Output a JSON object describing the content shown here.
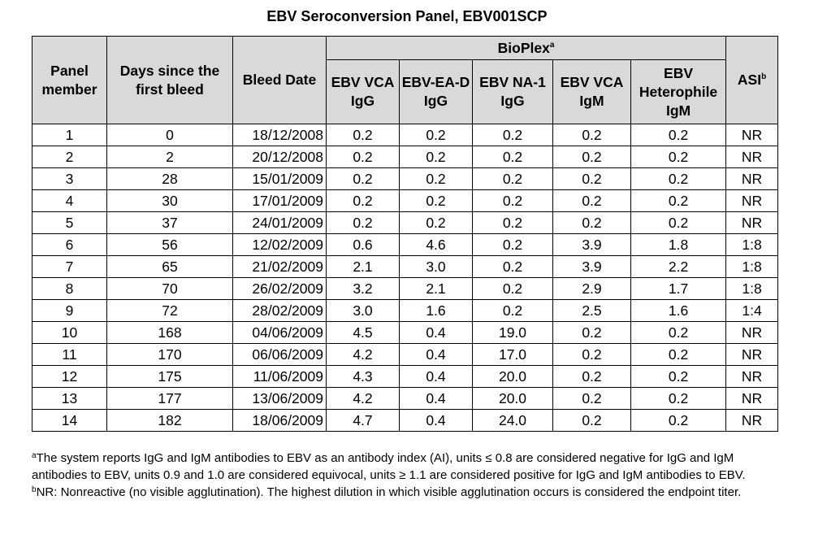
{
  "title": "EBV Seroconversion Panel, EBV001SCP",
  "table": {
    "headers": {
      "panel_member": "Panel member",
      "days": "Days since the first bleed",
      "bleed_date": "Bleed Date",
      "bioplex": "BioPlex",
      "bioplex_mark": "a",
      "vca_igg": "EBV VCA IgG",
      "ea_d_igg": "EBV-EA-D IgG",
      "na1_igg": "EBV NA-1 IgG",
      "vca_igm": "EBV VCA IgM",
      "heterophile": "EBV Heterophile IgM",
      "asi": "ASI",
      "asi_mark": "b"
    },
    "rows": [
      {
        "member": "1",
        "days": "0",
        "date": "18/12/2008",
        "vca_igg": "0.2",
        "ea_d_igg": "0.2",
        "na1_igg": "0.2",
        "vca_igm": "0.2",
        "heterophile": "0.2",
        "asi": "NR"
      },
      {
        "member": "2",
        "days": "2",
        "date": "20/12/2008",
        "vca_igg": "0.2",
        "ea_d_igg": "0.2",
        "na1_igg": "0.2",
        "vca_igm": "0.2",
        "heterophile": "0.2",
        "asi": "NR"
      },
      {
        "member": "3",
        "days": "28",
        "date": "15/01/2009",
        "vca_igg": "0.2",
        "ea_d_igg": "0.2",
        "na1_igg": "0.2",
        "vca_igm": "0.2",
        "heterophile": "0.2",
        "asi": "NR"
      },
      {
        "member": "4",
        "days": "30",
        "date": "17/01/2009",
        "vca_igg": "0.2",
        "ea_d_igg": "0.2",
        "na1_igg": "0.2",
        "vca_igm": "0.2",
        "heterophile": "0.2",
        "asi": "NR"
      },
      {
        "member": "5",
        "days": "37",
        "date": "24/01/2009",
        "vca_igg": "0.2",
        "ea_d_igg": "0.2",
        "na1_igg": "0.2",
        "vca_igm": "0.2",
        "heterophile": "0.2",
        "asi": "NR"
      },
      {
        "member": "6",
        "days": "56",
        "date": "12/02/2009",
        "vca_igg": "0.6",
        "ea_d_igg": "4.6",
        "na1_igg": "0.2",
        "vca_igm": "3.9",
        "heterophile": "1.8",
        "asi": "1:8"
      },
      {
        "member": "7",
        "days": "65",
        "date": "21/02/2009",
        "vca_igg": "2.1",
        "ea_d_igg": "3.0",
        "na1_igg": "0.2",
        "vca_igm": "3.9",
        "heterophile": "2.2",
        "asi": "1:8"
      },
      {
        "member": "8",
        "days": "70",
        "date": "26/02/2009",
        "vca_igg": "3.2",
        "ea_d_igg": "2.1",
        "na1_igg": "0.2",
        "vca_igm": "2.9",
        "heterophile": "1.7",
        "asi": "1:8"
      },
      {
        "member": "9",
        "days": "72",
        "date": "28/02/2009",
        "vca_igg": "3.0",
        "ea_d_igg": "1.6",
        "na1_igg": "0.2",
        "vca_igm": "2.5",
        "heterophile": "1.6",
        "asi": "1:4"
      },
      {
        "member": "10",
        "days": "168",
        "date": "04/06/2009",
        "vca_igg": "4.5",
        "ea_d_igg": "0.4",
        "na1_igg": "19.0",
        "vca_igm": "0.2",
        "heterophile": "0.2",
        "asi": "NR"
      },
      {
        "member": "11",
        "days": "170",
        "date": "06/06/2009",
        "vca_igg": "4.2",
        "ea_d_igg": "0.4",
        "na1_igg": "17.0",
        "vca_igm": "0.2",
        "heterophile": "0.2",
        "asi": "NR"
      },
      {
        "member": "12",
        "days": "175",
        "date": "11/06/2009",
        "vca_igg": "4.3",
        "ea_d_igg": "0.4",
        "na1_igg": "20.0",
        "vca_igm": "0.2",
        "heterophile": "0.2",
        "asi": "NR"
      },
      {
        "member": "13",
        "days": "177",
        "date": "13/06/2009",
        "vca_igg": "4.2",
        "ea_d_igg": "0.4",
        "na1_igg": "20.0",
        "vca_igm": "0.2",
        "heterophile": "0.2",
        "asi": "NR"
      },
      {
        "member": "14",
        "days": "182",
        "date": "18/06/2009",
        "vca_igg": "4.7",
        "ea_d_igg": "0.4",
        "na1_igg": "24.0",
        "vca_igm": "0.2",
        "heterophile": "0.2",
        "asi": "NR"
      }
    ]
  },
  "footnotes": {
    "a_mark": "a",
    "a_text": "The system reports IgG and IgM antibodies to EBV as an antibody index (AI), units ≤ 0.8 are considered negative for IgG and IgM antibodies to EBV, units 0.9 and 1.0 are considered equivocal, units ≥ 1.1 are considered positive for IgG and IgM antibodies to EBV.",
    "b_mark": "b",
    "b_text": "NR: Nonreactive (no visible agglutination). The highest dilution in which visible agglutination occurs is considered the endpoint titer."
  },
  "colors": {
    "header_background": "#d9d9d9",
    "border": "#000000"
  }
}
